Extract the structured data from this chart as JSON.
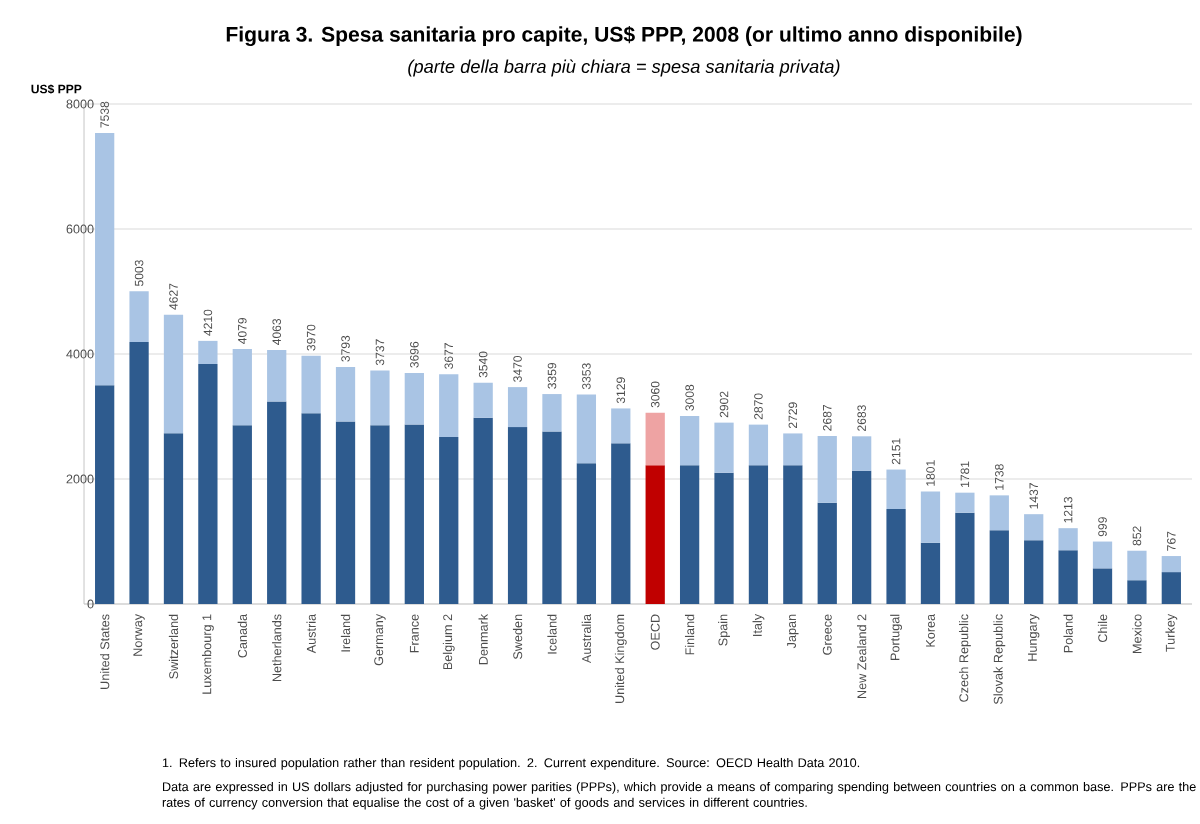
{
  "chart_data": {
    "type": "bar",
    "stacked": true,
    "title": "Figura 3. Spesa sanitaria pro capite, US$ PPP, 2008 (or ultimo anno disponibile)",
    "subtitle": "(parte della barra più chiara = spesa sanitaria privata)",
    "ylabel": "US$ PPP",
    "categories": [
      "United States",
      "Norway",
      "Switzerland",
      "Luxembourg 1",
      "Canada",
      "Netherlands",
      "Austria",
      "Ireland",
      "Germany",
      "France",
      "Belgium 2",
      "Denmark",
      "Sweden",
      "Iceland",
      "Australia",
      "United Kingdom",
      "OECD",
      "Finland",
      "Spain",
      "Italy",
      "Japan",
      "Greece",
      "New Zealand 2",
      "Portugal",
      "Korea",
      "Czech Republic",
      "Slovak Republic",
      "Hungary",
      "Poland",
      "Chile",
      "Mexico",
      "Turkey"
    ],
    "series": [
      {
        "colors": [
          "#2e5b8e",
          "#2e5b8e",
          "#2e5b8e",
          "#2e5b8e",
          "#2e5b8e",
          "#2e5b8e",
          "#2e5b8e",
          "#2e5b8e",
          "#2e5b8e",
          "#2e5b8e",
          "#2e5b8e",
          "#2e5b8e",
          "#2e5b8e",
          "#2e5b8e",
          "#2e5b8e",
          "#2e5b8e",
          "#c00000",
          "#2e5b8e",
          "#2e5b8e",
          "#2e5b8e",
          "#2e5b8e",
          "#2e5b8e",
          "#2e5b8e",
          "#2e5b8e",
          "#2e5b8e",
          "#2e5b8e",
          "#2e5b8e",
          "#2e5b8e",
          "#2e5b8e",
          "#2e5b8e",
          "#2e5b8e",
          "#2e5b8e"
        ],
        "values": [
          3500,
          4190,
          2730,
          3840,
          2860,
          3240,
          3050,
          2920,
          2860,
          2870,
          2670,
          2980,
          2830,
          2760,
          2250,
          2570,
          2220,
          2220,
          2100,
          2220,
          2220,
          1620,
          2130,
          1520,
          980,
          1460,
          1180,
          1020,
          860,
          570,
          380,
          510
        ]
      },
      {
        "colors": [
          "#a9c4e4",
          "#a9c4e4",
          "#a9c4e4",
          "#a9c4e4",
          "#a9c4e4",
          "#a9c4e4",
          "#a9c4e4",
          "#a9c4e4",
          "#a9c4e4",
          "#a9c4e4",
          "#a9c4e4",
          "#a9c4e4",
          "#a9c4e4",
          "#a9c4e4",
          "#a9c4e4",
          "#a9c4e4",
          "#eea3a3",
          "#a9c4e4",
          "#a9c4e4",
          "#a9c4e4",
          "#a9c4e4",
          "#a9c4e4",
          "#a9c4e4",
          "#a9c4e4",
          "#a9c4e4",
          "#a9c4e4",
          "#a9c4e4",
          "#a9c4e4",
          "#a9c4e4",
          "#a9c4e4",
          "#a9c4e4",
          "#a9c4e4"
        ],
        "values": [
          4038,
          813,
          1897,
          370,
          1219,
          823,
          920,
          873,
          877,
          826,
          1007,
          560,
          640,
          599,
          1103,
          559,
          840,
          788,
          802,
          650,
          509,
          1067,
          553,
          631,
          821,
          321,
          558,
          417,
          353,
          429,
          472,
          257
        ]
      }
    ],
    "totals": [
      "7538",
      "5003",
      "4627",
      "4210",
      "4079",
      "4063",
      "3970",
      "3793",
      "3737",
      "3696",
      "3677",
      "3540",
      "3470",
      "3359",
      "3353",
      "3129",
      "3060",
      "3008",
      "2902",
      "2870",
      "2729",
      "2687",
      "2683",
      "2151",
      "1801",
      "1781",
      "1738",
      "1437",
      "1213",
      "999",
      "852",
      "767"
    ],
    "ylim": [
      0,
      8000
    ],
    "yticks": [
      0,
      2000,
      4000,
      6000,
      8000
    ],
    "grid": "y",
    "annotations": [
      "1. Refers to insured population rather than resident population. 2. Current expenditure.    Source: OECD Health Data 2010.",
      "Data are expressed in US dollars adjusted for purchasing power parities (PPPs), which provide a means of comparing spending between countries on a common base. PPPs are the rates of currency conversion that equalise the cost of a given 'basket' of goods and services in different countries."
    ]
  }
}
